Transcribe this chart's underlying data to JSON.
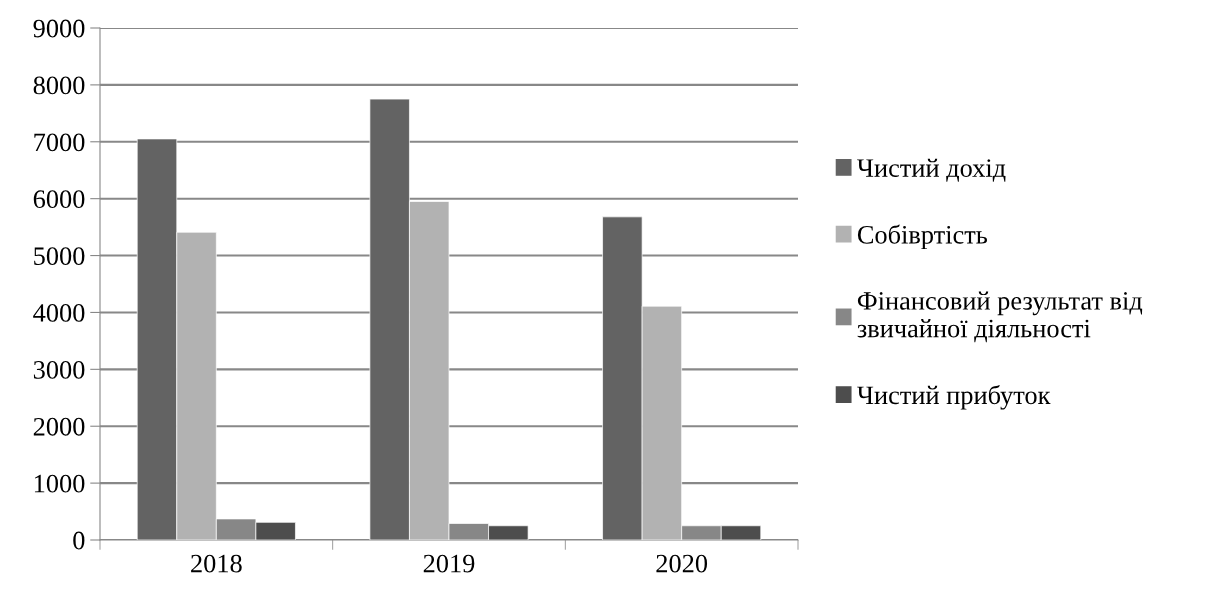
{
  "chart_data": {
    "type": "bar",
    "categories": [
      "2018",
      "2019",
      "2020"
    ],
    "series": [
      {
        "name": "Чистий дохід",
        "color": "#636363",
        "values": [
          7050,
          7750,
          5680
        ]
      },
      {
        "name": "Собівртість",
        "color": "#b2b2b2",
        "values": [
          5410,
          5950,
          4110
        ]
      },
      {
        "name": "Фінансовий результат від\nзвичайної діяльності",
        "color": "#878787",
        "values": [
          370,
          290,
          250
        ]
      },
      {
        "name": "Чистий прибуток",
        "color": "#4d4d4d",
        "values": [
          310,
          250,
          250
        ]
      }
    ],
    "ylim": [
      0,
      9000
    ],
    "yticks": [
      0,
      1000,
      2000,
      3000,
      4000,
      5000,
      6000,
      7000,
      8000,
      9000
    ],
    "grid": "y",
    "legend": "right"
  }
}
